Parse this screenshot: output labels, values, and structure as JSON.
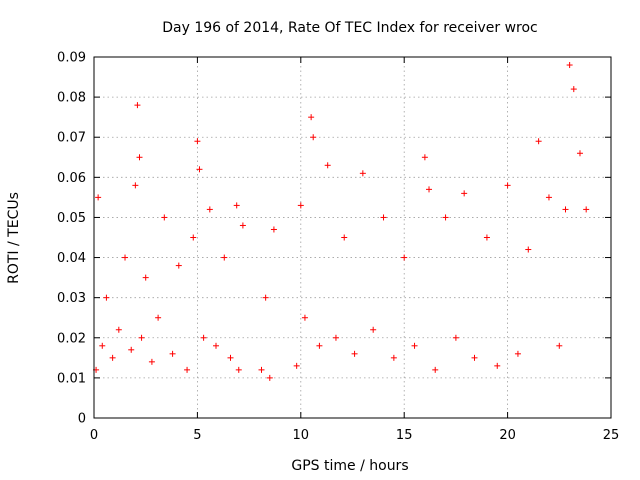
{
  "chart_data": {
    "type": "scatter",
    "title": "Day 196 of 2014, Rate Of TEC Index for receiver wroc",
    "xlabel": "GPS time / hours",
    "ylabel": "ROTI / TECUs",
    "xlim": [
      0,
      25
    ],
    "ylim": [
      0,
      0.09
    ],
    "x_ticks": [
      0,
      5,
      10,
      15,
      20,
      25
    ],
    "x_tick_labels": [
      "0",
      "5",
      "10",
      "15",
      "20",
      "25"
    ],
    "y_ticks": [
      0,
      0.01,
      0.02,
      0.03,
      0.04,
      0.05,
      0.06,
      0.07,
      0.08,
      0.09
    ],
    "y_tick_labels": [
      "0",
      "0.01",
      "0.02",
      "0.03",
      "0.04",
      "0.05",
      "0.06",
      "0.07",
      "0.08",
      "0.09"
    ],
    "grid": true,
    "marker": "+",
    "color": "#ff0000",
    "data_gaps_hours": [
      [
        7.4,
        7.95
      ],
      [
        8.9,
        9.7
      ]
    ],
    "series": [
      {
        "name": "ROTI",
        "x": [
          0.1,
          0.2,
          0.4,
          0.6,
          0.9,
          1.2,
          1.5,
          1.8,
          2.0,
          2.1,
          2.2,
          2.3,
          2.5,
          2.8,
          3.1,
          3.4,
          3.8,
          4.1,
          4.5,
          4.8,
          5.0,
          5.1,
          5.3,
          5.6,
          5.9,
          6.3,
          6.6,
          6.9,
          7.0,
          7.2,
          8.1,
          8.3,
          8.5,
          8.7,
          9.8,
          10.0,
          10.2,
          10.5,
          10.6,
          10.9,
          11.3,
          11.7,
          12.1,
          12.6,
          13.0,
          13.5,
          14.0,
          14.5,
          15.0,
          15.5,
          16.0,
          16.2,
          16.5,
          17.0,
          17.5,
          17.9,
          18.4,
          19.0,
          19.5,
          20.0,
          20.5,
          21.0,
          21.5,
          22.0,
          22.5,
          22.8,
          23.0,
          23.2,
          23.5,
          23.8
        ],
        "y": [
          0.012,
          0.055,
          0.018,
          0.03,
          0.015,
          0.022,
          0.04,
          0.017,
          0.058,
          0.078,
          0.065,
          0.02,
          0.035,
          0.014,
          0.025,
          0.05,
          0.016,
          0.038,
          0.012,
          0.045,
          0.069,
          0.062,
          0.02,
          0.052,
          0.018,
          0.04,
          0.015,
          0.053,
          0.012,
          0.048,
          0.012,
          0.03,
          0.01,
          0.047,
          0.013,
          0.053,
          0.025,
          0.075,
          0.07,
          0.018,
          0.063,
          0.02,
          0.045,
          0.016,
          0.061,
          0.022,
          0.05,
          0.015,
          0.04,
          0.018,
          0.065,
          0.057,
          0.012,
          0.05,
          0.02,
          0.056,
          0.015,
          0.045,
          0.013,
          0.058,
          0.016,
          0.042,
          0.069,
          0.055,
          0.018,
          0.052,
          0.088,
          0.082,
          0.066,
          0.052
        ]
      }
    ]
  }
}
